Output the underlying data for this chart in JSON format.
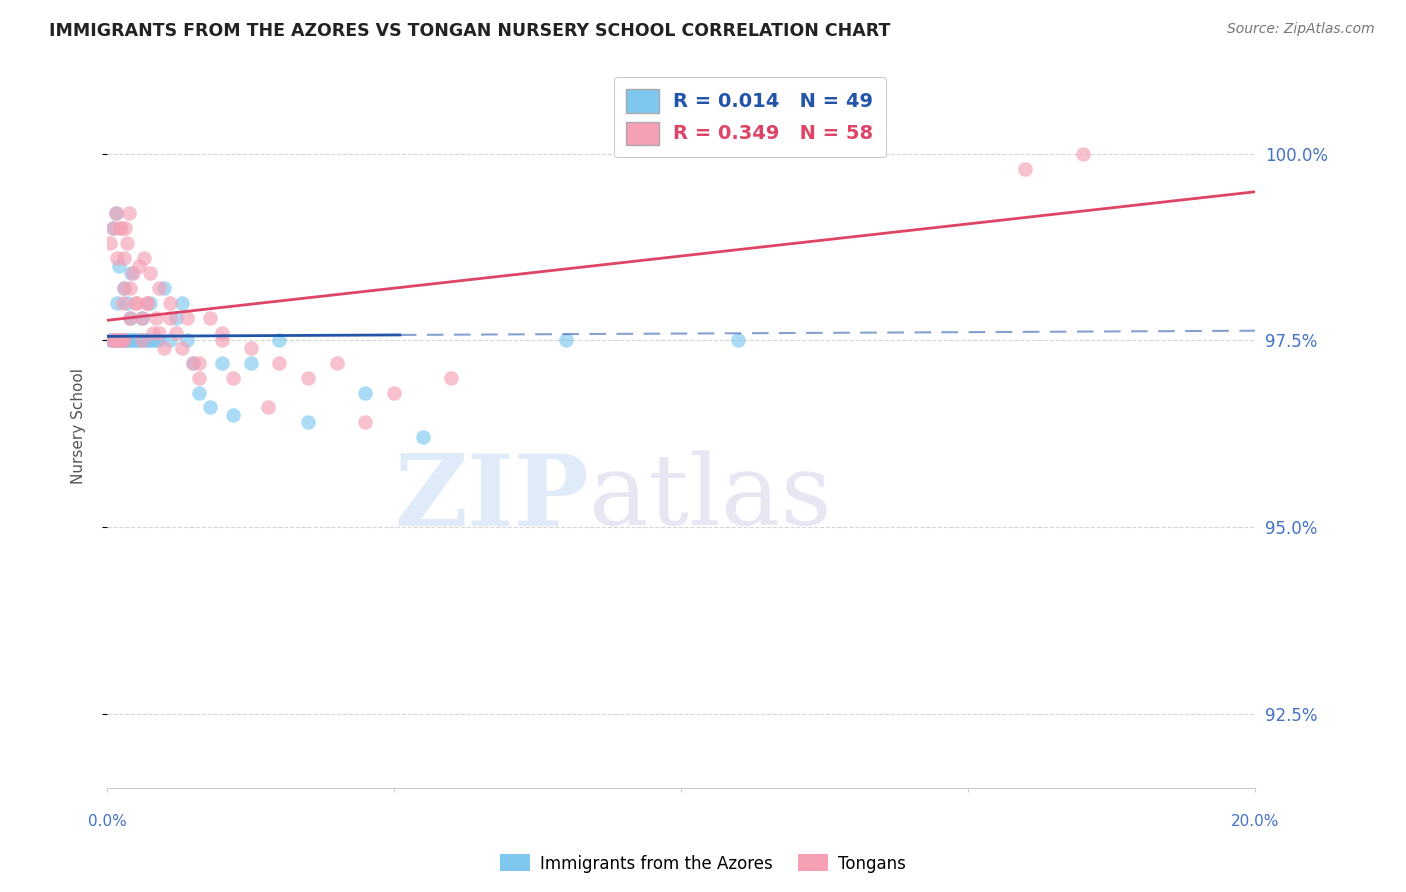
{
  "title": "IMMIGRANTS FROM THE AZORES VS TONGAN NURSERY SCHOOL CORRELATION CHART",
  "source": "Source: ZipAtlas.com",
  "ylabel": "Nursery School",
  "x_min": 0.0,
  "x_max": 20.0,
  "y_min": 91.5,
  "y_max": 101.2,
  "y_ticks": [
    92.5,
    95.0,
    97.5,
    100.0
  ],
  "legend_blue_r": "0.014",
  "legend_blue_n": "49",
  "legend_pink_r": "0.349",
  "legend_pink_n": "58",
  "blue_scatter_x": [
    0.05,
    0.08,
    0.1,
    0.12,
    0.15,
    0.18,
    0.2,
    0.22,
    0.25,
    0.28,
    0.3,
    0.32,
    0.35,
    0.38,
    0.4,
    0.42,
    0.45,
    0.5,
    0.55,
    0.6,
    0.65,
    0.7,
    0.75,
    0.8,
    0.85,
    0.9,
    1.0,
    1.1,
    1.2,
    1.3,
    1.5,
    1.6,
    1.8,
    2.0,
    2.2,
    2.5,
    3.0,
    3.5,
    4.5,
    5.5,
    0.15,
    0.25,
    0.35,
    0.45,
    0.6,
    0.75,
    1.4,
    8.0,
    11.0
  ],
  "blue_scatter_y": [
    97.5,
    97.5,
    99.0,
    97.5,
    99.2,
    98.0,
    98.5,
    97.5,
    97.5,
    97.5,
    98.2,
    97.5,
    98.0,
    97.5,
    97.8,
    98.4,
    97.5,
    97.5,
    97.5,
    97.8,
    97.5,
    97.5,
    98.0,
    97.5,
    97.5,
    97.5,
    98.2,
    97.5,
    97.8,
    98.0,
    97.2,
    96.8,
    96.6,
    97.2,
    96.5,
    97.2,
    97.5,
    96.4,
    96.8,
    96.2,
    97.5,
    97.5,
    97.5,
    97.5,
    97.5,
    97.5,
    97.5,
    97.5,
    97.5
  ],
  "pink_scatter_x": [
    0.05,
    0.08,
    0.1,
    0.12,
    0.15,
    0.18,
    0.2,
    0.22,
    0.25,
    0.28,
    0.3,
    0.32,
    0.35,
    0.38,
    0.4,
    0.45,
    0.5,
    0.55,
    0.6,
    0.65,
    0.7,
    0.75,
    0.8,
    0.85,
    0.9,
    1.0,
    1.1,
    1.2,
    1.3,
    1.5,
    1.6,
    1.8,
    2.0,
    2.2,
    2.5,
    3.0,
    3.5,
    4.0,
    5.0,
    6.0,
    0.2,
    0.3,
    0.5,
    0.7,
    0.9,
    1.1,
    1.4,
    2.0,
    2.8,
    16.0,
    17.0,
    4.5,
    1.6,
    0.6,
    0.4,
    0.3,
    0.25,
    0.15
  ],
  "pink_scatter_y": [
    98.8,
    97.5,
    99.0,
    97.5,
    99.2,
    98.6,
    99.0,
    97.5,
    99.0,
    98.0,
    98.6,
    99.0,
    98.8,
    99.2,
    98.2,
    98.4,
    98.0,
    98.5,
    97.8,
    98.6,
    98.0,
    98.4,
    97.6,
    97.8,
    98.2,
    97.4,
    98.0,
    97.6,
    97.4,
    97.2,
    97.0,
    97.8,
    97.6,
    97.0,
    97.4,
    97.2,
    97.0,
    97.2,
    96.8,
    97.0,
    97.5,
    98.2,
    98.0,
    98.0,
    97.6,
    97.8,
    97.8,
    97.5,
    96.6,
    99.8,
    100.0,
    96.4,
    97.2,
    97.5,
    97.8,
    97.5,
    97.5,
    97.5
  ],
  "blue_color": "#7ec8f0",
  "pink_color": "#f5a0b5",
  "blue_line_color": "#2255aa",
  "pink_line_color": "#dd4466",
  "watermark_zip": "ZIP",
  "watermark_atlas": "atlas",
  "background_color": "#ffffff",
  "grid_color": "#cccccc",
  "axis_label_color": "#4472c4",
  "title_color": "#222222"
}
